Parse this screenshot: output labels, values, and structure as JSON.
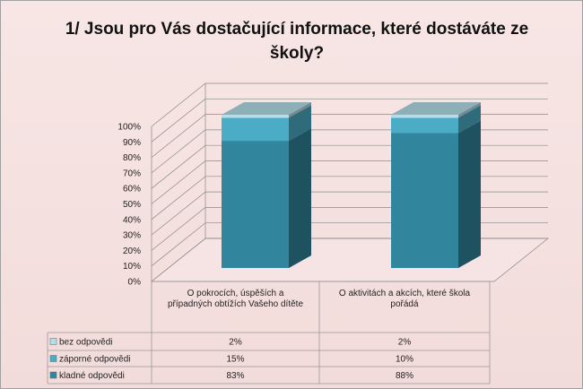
{
  "chart_data": {
    "type": "bar3d_stacked",
    "title": "1/ Jsou pro Vás dostačující informace, které dostáváte ze školy?",
    "categories": [
      "O pokrocích, úspěších a případných obtížích Vašeho dítěte",
      "O aktivitách a akcích, které škola pořádá"
    ],
    "series": [
      {
        "name": "bez odpovědi",
        "color": "#b7dde8",
        "values": [
          2,
          2
        ],
        "value_labels": [
          "2%",
          "2%"
        ]
      },
      {
        "name": "záporné odpovědi",
        "color": "#4bacc6",
        "values": [
          15,
          10
        ],
        "value_labels": [
          "15%",
          "10%"
        ]
      },
      {
        "name": "kladné odpovědi",
        "color": "#31859c",
        "values": [
          83,
          88
        ],
        "value_labels": [
          "83%",
          "88%"
        ]
      }
    ],
    "ylim": [
      0,
      100
    ],
    "yticks": [
      {
        "value": 0,
        "label": "0%"
      },
      {
        "value": 10,
        "label": "10%"
      },
      {
        "value": 20,
        "label": "20%"
      },
      {
        "value": 30,
        "label": "30%"
      },
      {
        "value": 40,
        "label": "40%"
      },
      {
        "value": 50,
        "label": "50%"
      },
      {
        "value": 60,
        "label": "60%"
      },
      {
        "value": 70,
        "label": "70%"
      },
      {
        "value": 80,
        "label": "80%"
      },
      {
        "value": 90,
        "label": "90%"
      },
      {
        "value": 100,
        "label": "100%"
      }
    ],
    "grid": true
  }
}
